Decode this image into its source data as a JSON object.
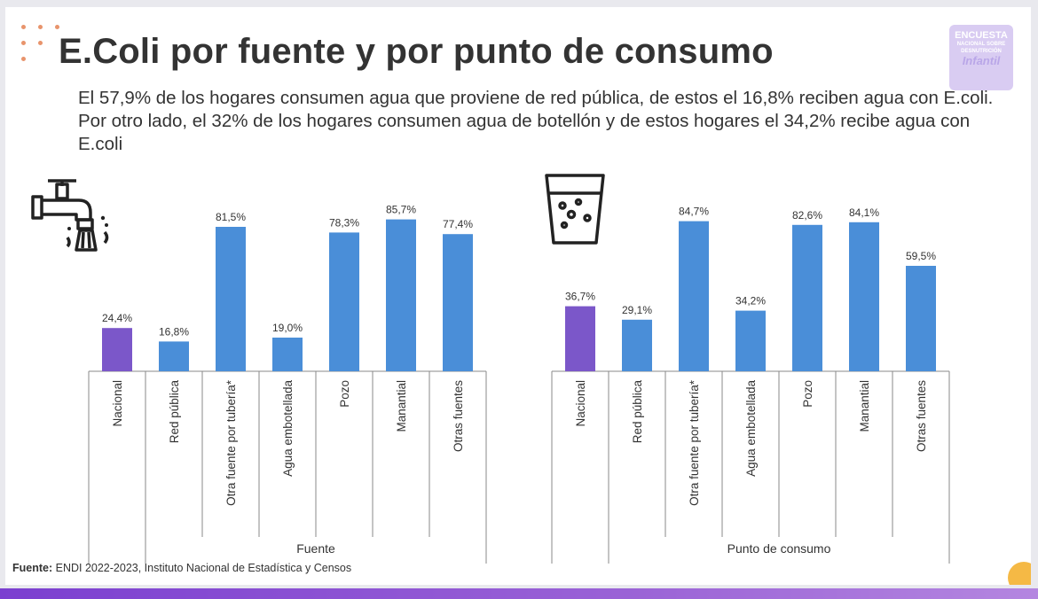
{
  "title": "E.Coli por fuente y por punto de consumo",
  "subtitle": "El 57,9% de los hogares consumen agua que proviene de red pública, de estos el 16,8% reciben agua con E.coli. Por otro lado, el 32% de los hogares consumen agua de botellón y de estos hogares el 34,2% recibe agua con E.coli",
  "logo": {
    "line1": "ENCUESTA",
    "line2": "NACIONAL SOBRE DESNUTRICIÓN",
    "line3": "Infantil"
  },
  "icons": {
    "left": "faucet-icon",
    "right": "water-glass-icon"
  },
  "colors": {
    "national": "#7b57c9",
    "bar": "#4a8ed8",
    "axis": "#8a8a8a",
    "text": "#333333"
  },
  "source": {
    "label": "Fuente:",
    "text": " ENDI 2022-2023, Instituto Nacional de Estadística y Censos"
  },
  "chart_data": [
    {
      "type": "bar",
      "group_label": "Fuente",
      "categories": [
        "Nacional",
        "Red pública",
        "Otra fuente por tubería*",
        "Agua embotellada",
        "Pozo",
        "Manantial",
        "Otras fuentes"
      ],
      "values": [
        24.4,
        16.8,
        81.5,
        19.0,
        78.3,
        85.7,
        77.4
      ],
      "labels": [
        "24,4%",
        "16,8%",
        "81,5%",
        "19,0%",
        "78,3%",
        "85,7%",
        "77,4%"
      ],
      "ylim": [
        0,
        100
      ]
    },
    {
      "type": "bar",
      "group_label": "Punto de consumo",
      "categories": [
        "Nacional",
        "Red pública",
        "Otra fuente por tubería*",
        "Agua embotellada",
        "Pozo",
        "Manantial",
        "Otras fuentes"
      ],
      "values": [
        36.7,
        29.1,
        84.7,
        34.2,
        82.6,
        84.1,
        59.5
      ],
      "labels": [
        "36,7%",
        "29,1%",
        "84,7%",
        "34,2%",
        "82,6%",
        "84,1%",
        "59,5%"
      ],
      "ylim": [
        0,
        100
      ]
    }
  ]
}
